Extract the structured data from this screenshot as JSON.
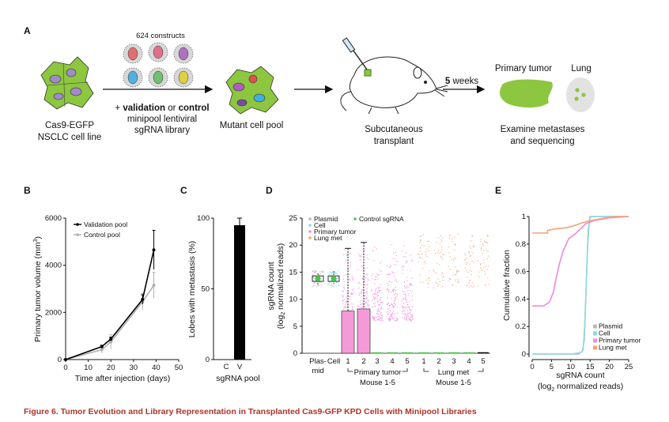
{
  "panel_a": {
    "letter": "A",
    "cell_line_label_1": "Cas9-EGFP",
    "cell_line_label_2": "NSCLC cell line",
    "constructs_label": "624 constructs",
    "library_plus": "+ ",
    "library_validation": "validation",
    "library_or": " or ",
    "library_control": "control",
    "library_line_2": "minipool lentiviral",
    "library_line_3": "sgRNA library",
    "mutant_pool_label": "Mutant cell pool",
    "transplant_label_1": "Subcutaneous",
    "transplant_label_2": "transplant",
    "weeks_number": "5",
    "weeks_unit": " weeks",
    "primary_tumor_label": "Primary tumor",
    "lung_label": "Lung",
    "examine_label_1": "Examine metastases",
    "examine_label_2": "and sequencing"
  },
  "caption": "Figure 6.  Tumor Evolution and Library Representation in Transplanted Cas9-GFP KPD Cells with Minipool Libraries",
  "colors": {
    "caption": "#b0332b",
    "cell_green": "#8dc63f",
    "plasmid": "#b8b8b8",
    "cell": "#8fd6e8",
    "primary_tumor": "#f08ad8",
    "lung_met": "#f4a373",
    "control_sgrna": "#4cc44c"
  },
  "chart_data": [
    {
      "panel": "B",
      "type": "line",
      "xlabel": "Time after injection (days)",
      "ylabel": "Primary tumor volume (mm3)",
      "ylabel_main": "Primary tumor volume (mm",
      "ylabel_sup": "3",
      "ylabel_end": ")",
      "xlim": [
        0,
        50
      ],
      "ylim": [
        0,
        6000
      ],
      "xticks": [
        0,
        10,
        20,
        30,
        40,
        50
      ],
      "yticks": [
        0,
        2000,
        4000,
        6000
      ],
      "legend": "top-left",
      "series": [
        {
          "name": "Validation pool",
          "color": "#000000",
          "x": [
            0,
            16,
            20,
            34,
            39
          ],
          "y": [
            0,
            550,
            870,
            2550,
            4650
          ],
          "err": [
            20,
            60,
            80,
            200,
            830
          ]
        },
        {
          "name": "Control pool",
          "color": "#b0b0b0",
          "x": [
            0,
            16,
            20,
            34,
            39
          ],
          "y": [
            0,
            420,
            750,
            2450,
            3150
          ],
          "err": [
            20,
            150,
            300,
            350,
            550
          ]
        }
      ]
    },
    {
      "panel": "C",
      "type": "bar",
      "xlabel": "sgRNA pool",
      "ylabel": "Lobes with metastasis (%)",
      "categories": [
        "C",
        "V"
      ],
      "values": [
        0,
        95
      ],
      "err": [
        0,
        5
      ],
      "ylim": [
        0,
        100
      ],
      "yticks": [
        0,
        50,
        100
      ]
    },
    {
      "panel": "D",
      "type": "scatter",
      "ylabel_1": "sgRNA count",
      "ylabel_2_pre": "(log",
      "ylabel_2_sub": "2",
      "ylabel_2_post": " normalized reads)",
      "ylim": [
        0,
        25
      ],
      "yticks": [
        0,
        5,
        10,
        15,
        20,
        25
      ],
      "legend": [
        "Plasmid",
        "Cell",
        "Primary tumor",
        "Lung met",
        "Control sgRNA"
      ],
      "categories": [
        "Plas-",
        "Cell",
        "1",
        "2",
        "3",
        "4",
        "5",
        "1",
        "2",
        "3",
        "4",
        "5"
      ],
      "category_second_line": "mid",
      "group_labels": [
        {
          "label": "Primary tumor",
          "sub": "Mouse 1-5"
        },
        {
          "label": "Lung met",
          "sub": "Mouse 1-5"
        }
      ],
      "median": [
        13.8,
        13.8,
        7.8,
        8.2,
        0,
        0,
        0,
        0,
        0,
        0,
        0,
        0
      ],
      "whisker_max": [
        14.8,
        15.2,
        19.4,
        20.5,
        0,
        0,
        0,
        0,
        0,
        0,
        0,
        0
      ],
      "group": [
        "plasmid",
        "cell",
        "primary_tumor",
        "primary_tumor",
        "primary_tumor",
        "primary_tumor",
        "primary_tumor",
        "lung_met",
        "lung_met",
        "lung_met",
        "lung_met",
        "lung_met"
      ]
    },
    {
      "panel": "E",
      "type": "line",
      "xlabel_1": "sgRNA count",
      "xlabel_2_pre": "(log",
      "xlabel_2_sub": "2",
      "xlabel_2_post": " normalized reads)",
      "ylabel": "Cumulative fraction",
      "xlim": [
        0,
        25
      ],
      "ylim": [
        0,
        1
      ],
      "xticks": [
        0,
        5,
        10,
        15,
        20,
        25
      ],
      "yticks": [
        0,
        0.2,
        0.4,
        0.6,
        0.8,
        1
      ],
      "ytick_labels": [
        "0",
        "0.2",
        "0.4",
        "0.6",
        "0.8",
        "1"
      ],
      "legend": "bottom-right",
      "series": [
        {
          "name": "Plasmid",
          "color": "#b8b8b8",
          "x": [
            0,
            12,
            13,
            13.5,
            14,
            14.5,
            15,
            25
          ],
          "y": [
            0,
            0,
            0.02,
            0.1,
            0.5,
            0.9,
            1,
            1
          ]
        },
        {
          "name": "Cell",
          "color": "#8fd6e8",
          "x": [
            0,
            10,
            12.5,
            13.2,
            13.6,
            14,
            14.4,
            14.8,
            15.2,
            25
          ],
          "y": [
            0,
            0,
            0.01,
            0.03,
            0.2,
            0.5,
            0.8,
            0.97,
            1,
            1
          ]
        },
        {
          "name": "Primary tumor",
          "color": "#f08ad8",
          "x": [
            0,
            3,
            4.5,
            5.5,
            6.2,
            7,
            8,
            9.5,
            11,
            12.5,
            14,
            16,
            18,
            20,
            25
          ],
          "y": [
            0.35,
            0.35,
            0.38,
            0.45,
            0.55,
            0.65,
            0.75,
            0.84,
            0.87,
            0.91,
            0.95,
            0.97,
            0.98,
            0.99,
            1
          ]
        },
        {
          "name": "Lung met",
          "color": "#f4a373",
          "x": [
            0,
            4,
            4,
            6,
            9,
            11,
            13,
            15,
            18,
            20,
            22,
            25
          ],
          "y": [
            0.88,
            0.88,
            0.9,
            0.91,
            0.92,
            0.935,
            0.955,
            0.97,
            0.985,
            0.995,
            1,
            1
          ]
        }
      ]
    }
  ]
}
